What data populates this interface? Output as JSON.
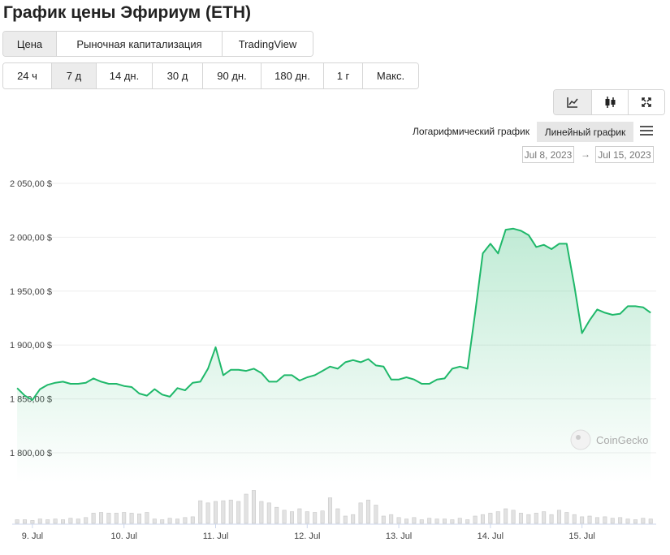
{
  "title": "График цены Эфириум (ETH)",
  "tabs": {
    "items": [
      "Цена",
      "Рыночная капитализация",
      "TradingView"
    ],
    "active": 0
  },
  "ranges": {
    "items": [
      "24 ч",
      "7 д",
      "14 дн.",
      "30 д",
      "90 дн.",
      "180 дн.",
      "1 г",
      "Макс."
    ],
    "active": 1
  },
  "scale_options": {
    "log": "Логарифмический график",
    "linear": "Линейный график"
  },
  "date_range": {
    "from": "Jul 8, 2023",
    "separator": "→",
    "to": "Jul 15, 2023"
  },
  "watermark": "CoinGecko",
  "chart_data": {
    "type": "line",
    "color": "#1fb86a",
    "area": true,
    "grid": true,
    "x": [
      -4,
      -2,
      0,
      2,
      4,
      6,
      8,
      10,
      12,
      14,
      16,
      18,
      20,
      22,
      24,
      26,
      28,
      30,
      32,
      34,
      36,
      38,
      40,
      42,
      44,
      46,
      48,
      50,
      52,
      54,
      56,
      58,
      60,
      62,
      64,
      66,
      68,
      70,
      72,
      74,
      76,
      78,
      80,
      82,
      84,
      86,
      88,
      90,
      92,
      94,
      96,
      98,
      100,
      102,
      104,
      106,
      108,
      110,
      112,
      114,
      116,
      118,
      120,
      122,
      124,
      126,
      128,
      130,
      132,
      134,
      136,
      138,
      140,
      142,
      144,
      146,
      148,
      150,
      152,
      154,
      156,
      158,
      160,
      162
    ],
    "values": [
      1860,
      1853,
      1849,
      1859,
      1863,
      1865,
      1866,
      1864,
      1864,
      1865,
      1869,
      1866,
      1864,
      1864,
      1862,
      1861,
      1855,
      1853,
      1859,
      1854,
      1852,
      1860,
      1858,
      1865,
      1866,
      1878,
      1898,
      1872,
      1877,
      1877,
      1876,
      1878,
      1874,
      1866,
      1866,
      1872,
      1872,
      1867,
      1870,
      1872,
      1876,
      1880,
      1878,
      1884,
      1886,
      1884,
      1887,
      1881,
      1880,
      1868,
      1868,
      1870,
      1868,
      1864,
      1864,
      1868,
      1869,
      1878,
      1880,
      1878,
      1930,
      1985,
      1994,
      1985,
      2007,
      2008,
      2006,
      2002,
      1991,
      1993,
      1989,
      1994,
      1994,
      1955,
      1911,
      1923,
      1933,
      1930,
      1928,
      1929,
      1936,
      1936,
      1935,
      1930
    ],
    "volumes": [
      5,
      5,
      4,
      6,
      5,
      6,
      5,
      7,
      6,
      8,
      14,
      15,
      14,
      14,
      15,
      14,
      13,
      15,
      6,
      5,
      7,
      6,
      8,
      9,
      31,
      28,
      30,
      31,
      32,
      30,
      40,
      45,
      30,
      28,
      22,
      18,
      16,
      20,
      16,
      15,
      17,
      35,
      20,
      10,
      12,
      28,
      32,
      25,
      10,
      12,
      8,
      6,
      8,
      5,
      7,
      6,
      6,
      5,
      7,
      5,
      10,
      12,
      14,
      16,
      20,
      18,
      14,
      12,
      14,
      16,
      12,
      18,
      15,
      12,
      9,
      10,
      8,
      9,
      7,
      8,
      6,
      5,
      7,
      6
    ],
    "volume_color": "#e2e2e2",
    "y2lim": [
      0,
      50
    ],
    "xlim": [
      -5.3,
      162.8
    ],
    "xticks": [
      {
        "value": 0,
        "label": "9. Jul"
      },
      {
        "value": 24,
        "label": "10. Jul"
      },
      {
        "value": 48,
        "label": "11. Jul"
      },
      {
        "value": 72,
        "label": "12. Jul"
      },
      {
        "value": 96,
        "label": "13. Jul"
      },
      {
        "value": 120,
        "label": "14. Jul"
      },
      {
        "value": 144,
        "label": "15. Jul"
      }
    ],
    "ylim": [
      1800,
      2050
    ],
    "yticks": [
      {
        "value": 1800,
        "label": "1 800,00 $"
      },
      {
        "value": 1850,
        "label": "1 850,00 $"
      },
      {
        "value": 1900,
        "label": "1 900,00 $"
      },
      {
        "value": 1950,
        "label": "1 950,00 $"
      },
      {
        "value": 2000,
        "label": "2 000,00 $"
      },
      {
        "value": 2050,
        "label": "2 050,00 $"
      }
    ]
  }
}
